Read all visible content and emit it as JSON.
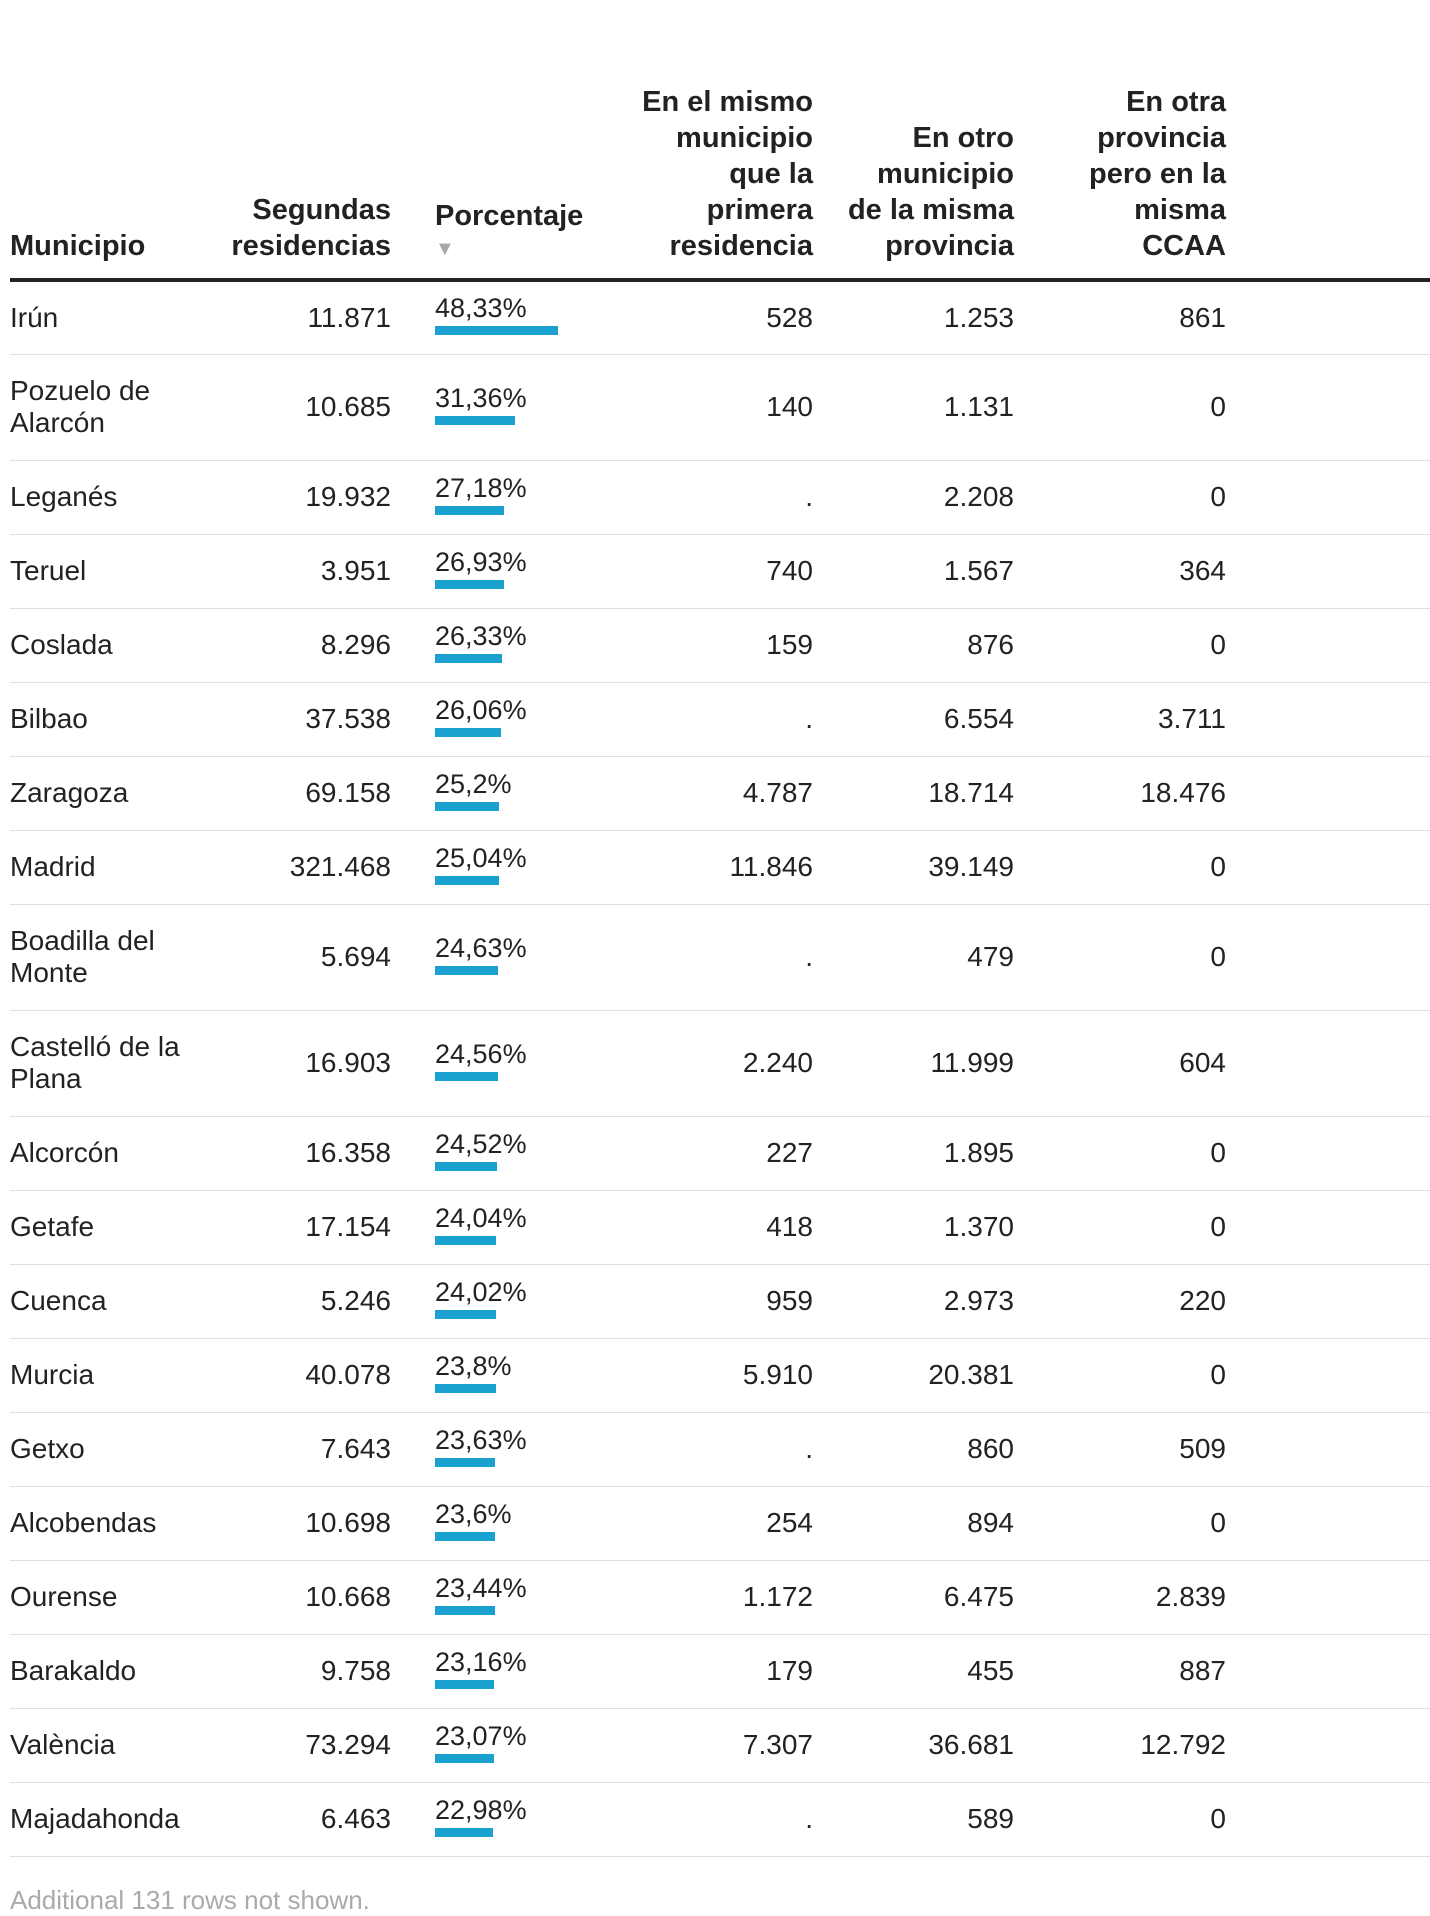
{
  "columns": {
    "municipio": "Municipio",
    "segundas": "Segundas residencias",
    "porcentaje": "Porcentaje",
    "sort_indicator": "▼",
    "mismo_municipio": "En el mismo municipio que la primera residencia",
    "otro_municipio": "En otro municipio de la misma provincia",
    "otra_provincia": "En otra provincia pero en la misma CCAA"
  },
  "bar_color": "#1aa1d0",
  "bar_scale_max_pct": 48.33,
  "rows": [
    {
      "municipio": "Irún",
      "segundas": "11.871",
      "porcentaje": "48,33%",
      "pct_value": 48.33,
      "mismo": "528",
      "otro": "1.253",
      "otra_provincia": "861"
    },
    {
      "municipio": "Pozuelo de Alarcón",
      "segundas": "10.685",
      "porcentaje": "31,36%",
      "pct_value": 31.36,
      "mismo": "140",
      "otro": "1.131",
      "otra_provincia": "0"
    },
    {
      "municipio": "Leganés",
      "segundas": "19.932",
      "porcentaje": "27,18%",
      "pct_value": 27.18,
      "mismo": ".",
      "otro": "2.208",
      "otra_provincia": "0"
    },
    {
      "municipio": "Teruel",
      "segundas": "3.951",
      "porcentaje": "26,93%",
      "pct_value": 26.93,
      "mismo": "740",
      "otro": "1.567",
      "otra_provincia": "364"
    },
    {
      "municipio": "Coslada",
      "segundas": "8.296",
      "porcentaje": "26,33%",
      "pct_value": 26.33,
      "mismo": "159",
      "otro": "876",
      "otra_provincia": "0"
    },
    {
      "municipio": "Bilbao",
      "segundas": "37.538",
      "porcentaje": "26,06%",
      "pct_value": 26.06,
      "mismo": ".",
      "otro": "6.554",
      "otra_provincia": "3.711"
    },
    {
      "municipio": "Zaragoza",
      "segundas": "69.158",
      "porcentaje": "25,2%",
      "pct_value": 25.2,
      "mismo": "4.787",
      "otro": "18.714",
      "otra_provincia": "18.476"
    },
    {
      "municipio": "Madrid",
      "segundas": "321.468",
      "porcentaje": "25,04%",
      "pct_value": 25.04,
      "mismo": "11.846",
      "otro": "39.149",
      "otra_provincia": "0"
    },
    {
      "municipio": "Boadilla del Monte",
      "segundas": "5.694",
      "porcentaje": "24,63%",
      "pct_value": 24.63,
      "mismo": ".",
      "otro": "479",
      "otra_provincia": "0"
    },
    {
      "municipio": "Castelló de la Plana",
      "segundas": "16.903",
      "porcentaje": "24,56%",
      "pct_value": 24.56,
      "mismo": "2.240",
      "otro": "11.999",
      "otra_provincia": "604"
    },
    {
      "municipio": "Alcorcón",
      "segundas": "16.358",
      "porcentaje": "24,52%",
      "pct_value": 24.52,
      "mismo": "227",
      "otro": "1.895",
      "otra_provincia": "0"
    },
    {
      "municipio": "Getafe",
      "segundas": "17.154",
      "porcentaje": "24,04%",
      "pct_value": 24.04,
      "mismo": "418",
      "otro": "1.370",
      "otra_provincia": "0"
    },
    {
      "municipio": "Cuenca",
      "segundas": "5.246",
      "porcentaje": "24,02%",
      "pct_value": 24.02,
      "mismo": "959",
      "otro": "2.973",
      "otra_provincia": "220"
    },
    {
      "municipio": "Murcia",
      "segundas": "40.078",
      "porcentaje": "23,8%",
      "pct_value": 23.8,
      "mismo": "5.910",
      "otro": "20.381",
      "otra_provincia": "0"
    },
    {
      "municipio": "Getxo",
      "segundas": "7.643",
      "porcentaje": "23,63%",
      "pct_value": 23.63,
      "mismo": ".",
      "otro": "860",
      "otra_provincia": "509"
    },
    {
      "municipio": "Alcobendas",
      "segundas": "10.698",
      "porcentaje": "23,6%",
      "pct_value": 23.6,
      "mismo": "254",
      "otro": "894",
      "otra_provincia": "0"
    },
    {
      "municipio": "Ourense",
      "segundas": "10.668",
      "porcentaje": "23,44%",
      "pct_value": 23.44,
      "mismo": "1.172",
      "otro": "6.475",
      "otra_provincia": "2.839"
    },
    {
      "municipio": "Barakaldo",
      "segundas": "9.758",
      "porcentaje": "23,16%",
      "pct_value": 23.16,
      "mismo": "179",
      "otro": "455",
      "otra_provincia": "887"
    },
    {
      "municipio": "València",
      "segundas": "73.294",
      "porcentaje": "23,07%",
      "pct_value": 23.07,
      "mismo": "7.307",
      "otro": "36.681",
      "otra_provincia": "12.792"
    },
    {
      "municipio": "Majadahonda",
      "segundas": "6.463",
      "porcentaje": "22,98%",
      "pct_value": 22.98,
      "mismo": ".",
      "otro": "589",
      "otra_provincia": "0"
    }
  ],
  "footnote": "Additional 131 rows not shown."
}
